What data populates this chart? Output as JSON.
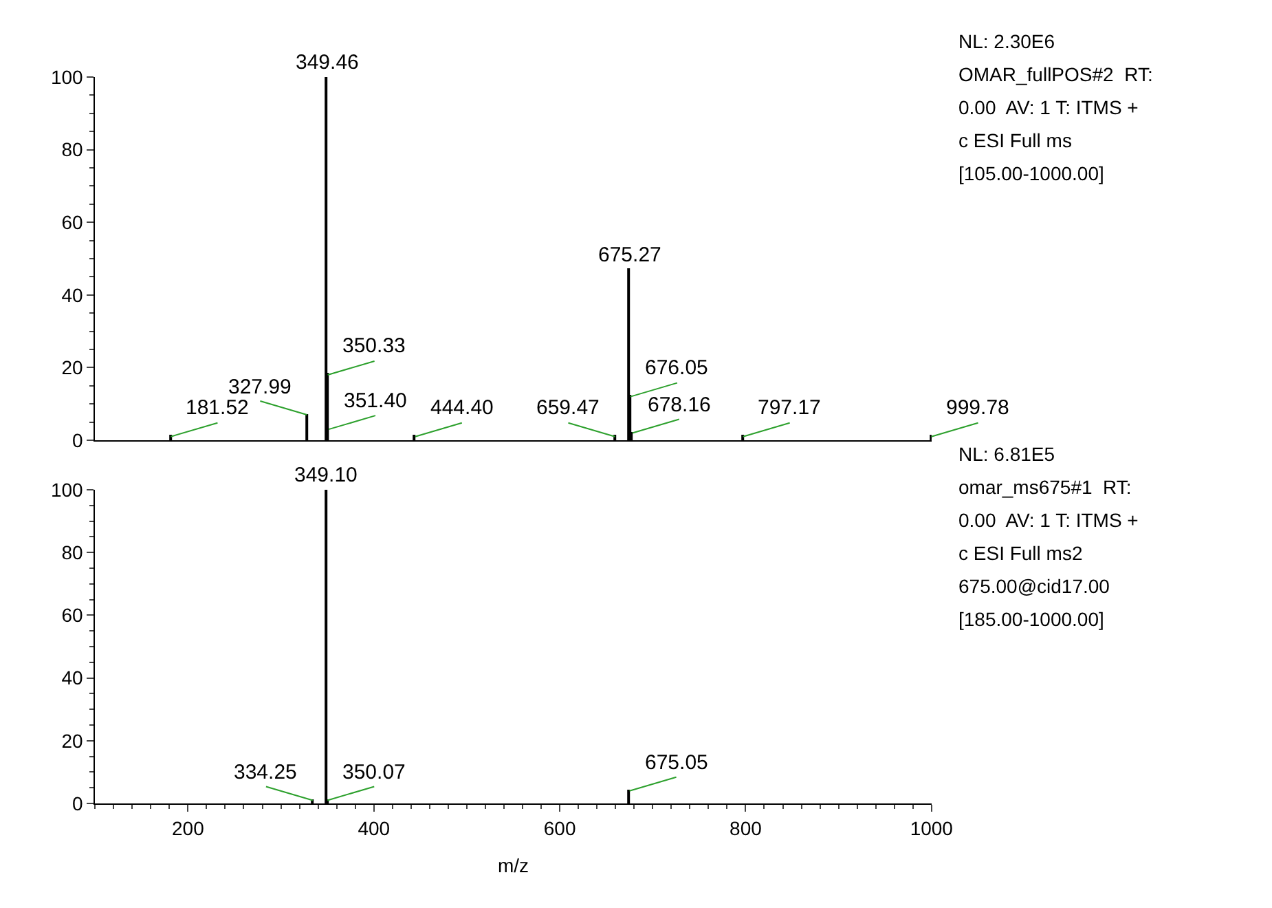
{
  "chart_data": [
    {
      "type": "bar",
      "x": [
        181.52,
        327.99,
        349.46,
        350.33,
        351.4,
        444.4,
        659.47,
        675.27,
        676.05,
        678.16,
        797.17,
        999.78
      ],
      "values": [
        1,
        7,
        100,
        18,
        3,
        1,
        1,
        47,
        12,
        2,
        1,
        1
      ],
      "color": "#000000",
      "xlim": [
        100,
        1000
      ],
      "ylim": [
        0,
        100
      ],
      "yticks": [
        0,
        20,
        40,
        60,
        80,
        100
      ],
      "tick_labels": "y",
      "annotations": [
        {
          "text": "349.46",
          "x": 349.46,
          "y": 100
        },
        {
          "text": "675.27",
          "x": 675.27,
          "y": 47
        },
        {
          "text": "350.33",
          "x": 350.33,
          "y": 18
        },
        {
          "text": "676.05",
          "x": 676.05,
          "y": 12
        },
        {
          "text": "327.99",
          "x": 327.99,
          "y": 7
        },
        {
          "text": "181.52",
          "x": 181.52,
          "y": 1
        },
        {
          "text": "351.40",
          "x": 351.4,
          "y": 3
        },
        {
          "text": "444.40",
          "x": 444.4,
          "y": 1
        },
        {
          "text": "659.47",
          "x": 659.47,
          "y": 1
        },
        {
          "text": "678.16",
          "x": 678.16,
          "y": 2
        },
        {
          "text": "797.17",
          "x": 797.17,
          "y": 1
        },
        {
          "text": "999.78",
          "x": 999.78,
          "y": 1
        },
        "NL: 2.30E6",
        "OMAR_fullPOS#2  RT:",
        "0.00  AV: 1 T: ITMS +",
        "c ESI Full ms",
        "[105.00-1000.00]"
      ]
    },
    {
      "type": "bar",
      "x": [
        334.25,
        349.1,
        350.07,
        675.05
      ],
      "values": [
        1,
        100,
        1,
        4
      ],
      "color": "#000000",
      "xlim": [
        100,
        1000
      ],
      "xticks": [
        200,
        400,
        600,
        800,
        1000
      ],
      "ylim": [
        0,
        100
      ],
      "yticks": [
        0,
        20,
        40,
        60,
        80,
        100
      ],
      "xlabel": "m/z",
      "annotations": [
        {
          "text": "349.10",
          "x": 349.1,
          "y": 100
        },
        {
          "text": "334.25",
          "x": 334.25,
          "y": 1
        },
        {
          "text": "350.07",
          "x": 350.07,
          "y": 1
        },
        {
          "text": "675.05",
          "x": 675.05,
          "y": 4
        },
        "NL: 6.81E5",
        "omar_ms675#1  RT:",
        "0.00  AV: 1 T: ITMS +",
        "c ESI Full ms2",
        "675.00@cid17.00",
        "[185.00-1000.00]"
      ]
    }
  ]
}
